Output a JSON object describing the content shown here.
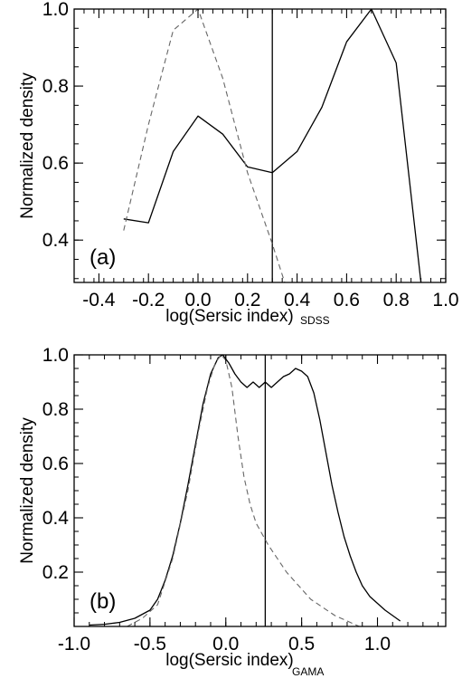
{
  "chart_data": [
    {
      "type": "line",
      "panel_label": "(a)",
      "xlabel": "log(Sersic index)",
      "xlabel_subscript": "SDSS",
      "ylabel": "Normalized density",
      "xlim": [
        -0.5,
        1.0
      ],
      "ylim": [
        0.29,
        1.0
      ],
      "xticks": [
        -0.4,
        -0.2,
        0.0,
        0.2,
        0.4,
        0.6,
        0.8,
        1.0
      ],
      "xtick_labels": [
        "-0.4",
        "-0.2",
        "0.0",
        "0.2",
        "0.4",
        "0.6",
        "0.8",
        "1.0"
      ],
      "yticks": [
        0.4,
        0.6,
        0.8,
        1.0
      ],
      "ytick_labels": [
        "0.4",
        "0.6",
        "0.8",
        "1.0"
      ],
      "vline": 0.3,
      "series": [
        {
          "style": "solid",
          "x": [
            -0.3,
            -0.2,
            -0.1,
            0.0,
            0.1,
            0.2,
            0.3,
            0.4,
            0.5,
            0.6,
            0.7,
            0.8,
            0.9
          ],
          "y": [
            0.455,
            0.445,
            0.63,
            0.722,
            0.675,
            0.59,
            0.575,
            0.63,
            0.745,
            0.915,
            1.0,
            0.86,
            0.29
          ]
        },
        {
          "style": "dashed",
          "x": [
            -0.3,
            -0.2,
            -0.1,
            0.0,
            0.1,
            0.2,
            0.3,
            0.35
          ],
          "y": [
            0.425,
            0.7,
            0.945,
            1.0,
            0.82,
            0.575,
            0.39,
            0.29
          ]
        }
      ]
    },
    {
      "type": "line",
      "panel_label": "(b)",
      "xlabel": "log(Sersic index)",
      "xlabel_subscript": "GAMA",
      "ylabel": "Normalized density",
      "xlim": [
        -1.0,
        1.45
      ],
      "ylim": [
        0.0,
        1.0
      ],
      "xticks": [
        -1.0,
        -0.5,
        0.0,
        0.5,
        1.0
      ],
      "xtick_labels": [
        "-1.0",
        "-0.5",
        "0.0",
        "0.5",
        "1.0"
      ],
      "yticks": [
        0.2,
        0.4,
        0.6,
        0.8,
        1.0
      ],
      "ytick_labels": [
        "0.2",
        "0.4",
        "0.6",
        "0.8",
        "1.0"
      ],
      "vline": 0.26,
      "series": [
        {
          "style": "solid",
          "x": [
            -0.9,
            -0.8,
            -0.7,
            -0.6,
            -0.5,
            -0.45,
            -0.4,
            -0.35,
            -0.3,
            -0.25,
            -0.2,
            -0.15,
            -0.1,
            -0.05,
            -0.02,
            0.02,
            0.06,
            0.1,
            0.14,
            0.18,
            0.22,
            0.26,
            0.3,
            0.34,
            0.38,
            0.42,
            0.46,
            0.5,
            0.54,
            0.58,
            0.62,
            0.66,
            0.7,
            0.74,
            0.78,
            0.82,
            0.86,
            0.9,
            0.95,
            1.0,
            1.05,
            1.1,
            1.15
          ],
          "y": [
            0.005,
            0.008,
            0.015,
            0.03,
            0.06,
            0.1,
            0.17,
            0.26,
            0.38,
            0.52,
            0.67,
            0.82,
            0.93,
            0.99,
            1.0,
            0.97,
            0.93,
            0.9,
            0.88,
            0.9,
            0.88,
            0.9,
            0.88,
            0.9,
            0.92,
            0.93,
            0.95,
            0.94,
            0.92,
            0.86,
            0.76,
            0.64,
            0.52,
            0.42,
            0.33,
            0.26,
            0.2,
            0.15,
            0.11,
            0.085,
            0.06,
            0.04,
            0.02
          ]
        },
        {
          "style": "dashed",
          "x": [
            -0.65,
            -0.55,
            -0.45,
            -0.35,
            -0.25,
            -0.18,
            -0.12,
            -0.07,
            -0.03,
            0.0,
            0.04,
            0.08,
            0.12,
            0.16,
            0.2,
            0.24,
            0.28,
            0.34,
            0.4,
            0.48,
            0.56,
            0.64,
            0.72,
            0.8,
            0.88
          ],
          "y": [
            0.0,
            0.03,
            0.08,
            0.25,
            0.5,
            0.72,
            0.88,
            0.97,
            1.0,
            0.98,
            0.88,
            0.7,
            0.55,
            0.45,
            0.38,
            0.34,
            0.3,
            0.25,
            0.2,
            0.15,
            0.1,
            0.07,
            0.04,
            0.02,
            0.0
          ]
        }
      ]
    }
  ]
}
